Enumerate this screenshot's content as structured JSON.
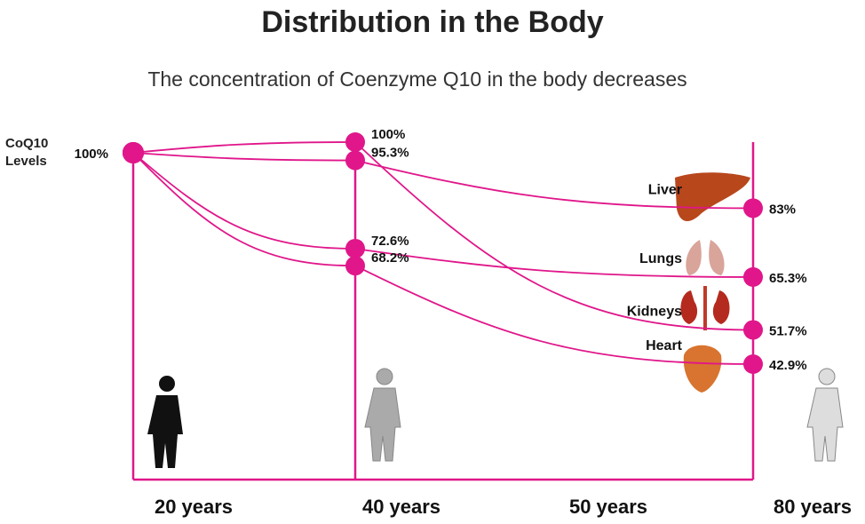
{
  "chart_data": {
    "type": "line",
    "title": "Distribution in the Body",
    "subtitle": "The concentration of Coenzyme Q10 in the body decreases",
    "ylabel": "CoQ10 Levels",
    "categories": [
      "20 years",
      "40 years",
      "50 years",
      "80 years"
    ],
    "series": [
      {
        "name": "Liver",
        "color": "#e0168a",
        "values": [
          100,
          95.3,
          null,
          83
        ],
        "value_labels": [
          "100%",
          "95.3%",
          null,
          "83%"
        ]
      },
      {
        "name": "Lungs",
        "color": "#e0168a",
        "values": [
          100,
          72.6,
          null,
          65.3
        ],
        "value_labels": [
          null,
          "72.6%",
          null,
          "65.3%"
        ]
      },
      {
        "name": "Kidneys",
        "color": "#e0168a",
        "values": [
          100,
          100,
          null,
          51.7
        ],
        "value_labels": [
          null,
          "100%",
          null,
          "51.7%"
        ]
      },
      {
        "name": "Heart",
        "color": "#e0168a",
        "values": [
          100,
          68.2,
          null,
          42.9
        ],
        "value_labels": [
          null,
          "68.2%",
          null,
          "42.9%"
        ]
      }
    ]
  }
}
